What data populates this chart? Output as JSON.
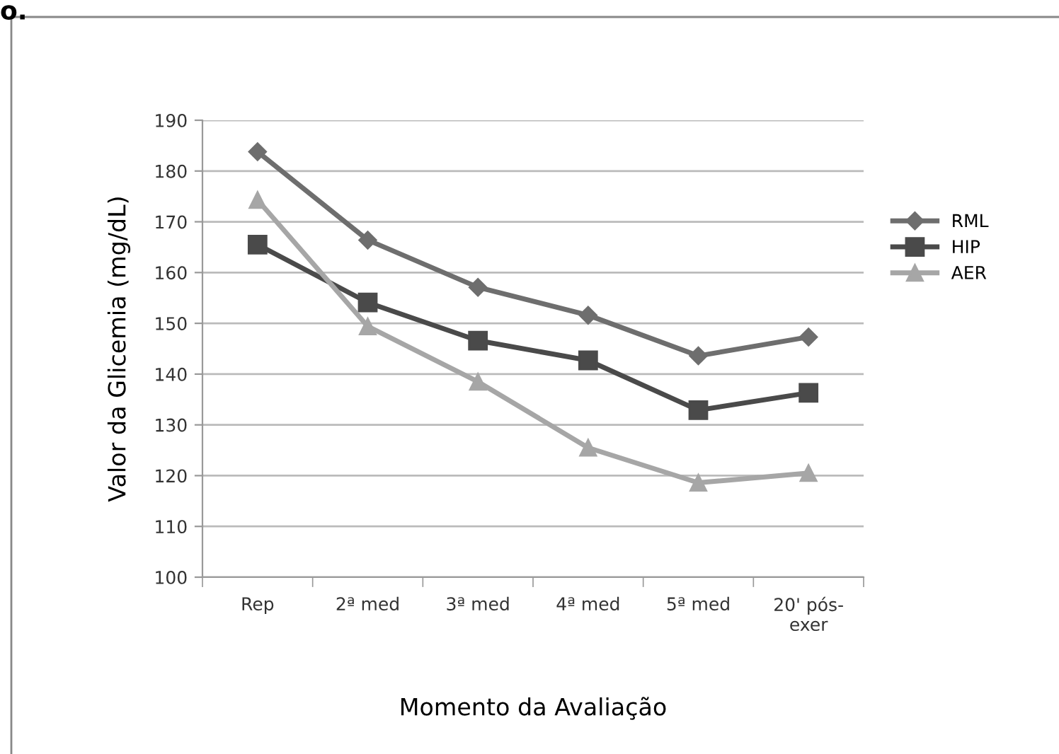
{
  "chart_data": {
    "type": "line",
    "xlabel": "Momento da Avaliação",
    "ylabel": "Valor da Glicemia (mg/dL)",
    "annotations": [
      "o."
    ],
    "categories": [
      "Rep",
      "2ª med",
      "3ª med",
      "4ª med",
      "5ª med",
      "20' pós-\nexer"
    ],
    "series": [
      {
        "name": "RML",
        "color": "#6e6e6e",
        "marker": "diamond",
        "values": [
          183.8,
          166.4,
          157.1,
          151.6,
          143.6,
          147.3
        ]
      },
      {
        "name": "HIP",
        "color": "#4a4a4a",
        "marker": "square",
        "values": [
          165.5,
          154.1,
          146.6,
          142.7,
          132.9,
          136.3
        ]
      },
      {
        "name": "AER",
        "color": "#a6a6a6",
        "marker": "triangle",
        "values": [
          174.3,
          149.4,
          138.5,
          125.5,
          118.6,
          120.5
        ]
      }
    ],
    "ylim": [
      100,
      190
    ],
    "yticks": [
      100,
      110,
      120,
      130,
      140,
      150,
      160,
      170,
      180,
      190
    ],
    "grid": "y",
    "legend": "right",
    "line_style": "solid"
  }
}
